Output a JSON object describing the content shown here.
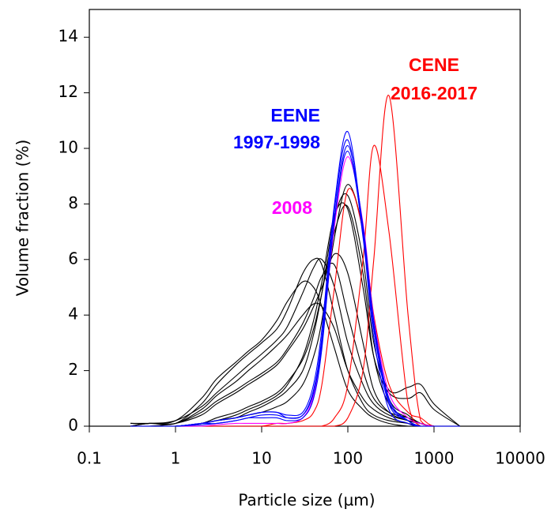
{
  "chart_data": {
    "type": "line",
    "x_label": "Particle size (µm)",
    "y_label": "Volume fraction (%)",
    "xscale": "log",
    "xlim": [
      0.1,
      10000
    ],
    "xticks": [
      0.1,
      1,
      10,
      100,
      1000,
      10000
    ],
    "ylim": [
      0,
      15
    ],
    "yticks": [
      0,
      2,
      4,
      6,
      8,
      10,
      12,
      14
    ],
    "x": [
      0.3,
      0.5,
      1,
      2,
      3,
      5,
      7,
      10,
      15,
      20,
      30,
      40,
      50,
      70,
      100,
      150,
      200,
      300,
      500,
      700,
      1000,
      2000
    ],
    "series": [
      {
        "color": "#000000",
        "values": [
          0.1,
          0.1,
          0.1,
          0.8,
          1.5,
          2.2,
          2.6,
          3,
          3.5,
          4.2,
          5.5,
          6,
          5.8,
          4,
          2,
          0.8,
          0.4,
          0.2,
          0.1,
          0,
          0,
          0
        ]
      },
      {
        "color": "#000000",
        "values": [
          0.1,
          0.1,
          0.2,
          1,
          1.7,
          2.3,
          2.7,
          3.1,
          3.8,
          4.5,
          5.2,
          5,
          4.3,
          2.8,
          1.3,
          0.6,
          0.3,
          0.1,
          0,
          0,
          0,
          0
        ]
      },
      {
        "color": "#000000",
        "values": [
          0,
          0.1,
          0.1,
          0.6,
          1.1,
          1.6,
          2,
          2.4,
          2.9,
          3.3,
          4,
          4.4,
          4.3,
          3.5,
          2,
          1,
          0.6,
          0.3,
          0.1,
          0,
          0,
          0
        ]
      },
      {
        "color": "#000000",
        "values": [
          0,
          0,
          0.1,
          0.4,
          0.8,
          1.2,
          1.5,
          1.8,
          2.2,
          2.7,
          3.5,
          4.3,
          5,
          6.2,
          5.5,
          3,
          1.3,
          0.5,
          0.2,
          0.1,
          0,
          0
        ]
      },
      {
        "color": "#000000",
        "values": [
          0,
          0,
          0,
          0.1,
          0.3,
          0.5,
          0.7,
          0.9,
          1.2,
          1.6,
          2.4,
          3.5,
          4.8,
          7,
          7.9,
          5.5,
          2.5,
          0.8,
          0.3,
          0.1,
          0,
          0
        ]
      },
      {
        "color": "#000000",
        "values": [
          0,
          0,
          0,
          0.1,
          0.2,
          0.3,
          0.4,
          0.5,
          0.7,
          0.9,
          1.5,
          2.5,
          3.8,
          6.8,
          8.7,
          7,
          3.5,
          1,
          0.4,
          0.1,
          0,
          0
        ]
      },
      {
        "color": "#000000",
        "values": [
          0,
          0,
          0,
          0.1,
          0.2,
          0.3,
          0.5,
          0.7,
          1,
          1.3,
          2,
          3.3,
          4.8,
          7.5,
          8.3,
          6,
          3,
          1.3,
          1.4,
          1.5,
          0.8,
          0
        ]
      },
      {
        "color": "#000000",
        "values": [
          0,
          0,
          0,
          0.1,
          0.2,
          0.4,
          0.6,
          0.8,
          1.1,
          1.5,
          2.5,
          3.8,
          5.2,
          7.6,
          7.8,
          5,
          2.5,
          1.2,
          1,
          1.2,
          0.6,
          0
        ]
      },
      {
        "color": "#000000",
        "values": [
          0.1,
          0.1,
          0.2,
          0.7,
          1.2,
          1.8,
          2.2,
          2.6,
          3.1,
          3.6,
          4.8,
          5.7,
          6,
          5,
          3,
          1.5,
          0.8,
          0.4,
          0.2,
          0.1,
          0,
          0
        ]
      },
      {
        "color": "#000000",
        "values": [
          0,
          0.1,
          0.1,
          0.5,
          0.9,
          1.3,
          1.6,
          1.9,
          2.3,
          2.8,
          3.7,
          4.6,
          5.4,
          5.8,
          4,
          2,
          1,
          0.5,
          0.3,
          0.1,
          0,
          0
        ]
      },
      {
        "color": "#ff0000",
        "values": [
          0,
          0,
          0,
          0,
          0,
          0,
          0,
          0,
          0.1,
          0.1,
          0.2,
          0.5,
          1.5,
          5,
          8.5,
          7,
          4,
          1.5,
          0.5,
          0.3,
          0,
          0
        ]
      },
      {
        "color": "#ff0000",
        "values": [
          0,
          0,
          0,
          0,
          0,
          0,
          0,
          0,
          0,
          0,
          0,
          0,
          0,
          0.3,
          1.5,
          6,
          10.1,
          7,
          0.8,
          0,
          0,
          0
        ]
      },
      {
        "color": "#ff0000",
        "values": [
          0,
          0,
          0,
          0,
          0,
          0,
          0,
          0,
          0,
          0,
          0,
          0,
          0,
          0,
          0.3,
          2,
          6,
          11.9,
          4,
          0.2,
          0,
          0
        ]
      },
      {
        "color": "#ff00ff",
        "values": [
          0,
          0,
          0,
          0,
          0.05,
          0.1,
          0.1,
          0.1,
          0.1,
          0.1,
          0.3,
          1.1,
          3,
          7.2,
          9.7,
          7.3,
          3.9,
          1.2,
          0.3,
          0.1,
          0,
          0
        ]
      },
      {
        "color": "#0000ff",
        "values": [
          0,
          0,
          0,
          0.1,
          0.2,
          0.3,
          0.4,
          0.5,
          0.5,
          0.4,
          0.5,
          1.5,
          3.5,
          8,
          10.6,
          7,
          3.5,
          0.8,
          0.2,
          0,
          0,
          0
        ]
      },
      {
        "color": "#0000ff",
        "values": [
          0,
          0,
          0,
          0.1,
          0.2,
          0.3,
          0.4,
          0.5,
          0.5,
          0.3,
          0.4,
          1.3,
          3.2,
          7.8,
          10.3,
          6.8,
          3.2,
          0.6,
          0.1,
          0,
          0,
          0
        ]
      },
      {
        "color": "#0000ff",
        "values": [
          0,
          0,
          0,
          0.05,
          0.1,
          0.2,
          0.3,
          0.4,
          0.4,
          0.3,
          0.4,
          1.2,
          3,
          7.5,
          10.1,
          7.2,
          3.8,
          1,
          0.2,
          0,
          0,
          0
        ]
      },
      {
        "color": "#0000ff",
        "values": [
          0,
          0,
          0,
          0.1,
          0.1,
          0.2,
          0.3,
          0.3,
          0.3,
          0.2,
          0.3,
          1,
          2.8,
          7.4,
          9.9,
          7,
          3.6,
          0.9,
          0.2,
          0,
          0,
          0
        ]
      }
    ],
    "annotations": [
      {
        "text": "EENE",
        "color": "#0000ff"
      },
      {
        "text": "1997-1998",
        "color": "#0000ff"
      },
      {
        "text": "2008",
        "color": "#ff00ff"
      },
      {
        "text": "CENE",
        "color": "#ff0000"
      },
      {
        "text": "2016-2017",
        "color": "#ff0000"
      }
    ]
  }
}
